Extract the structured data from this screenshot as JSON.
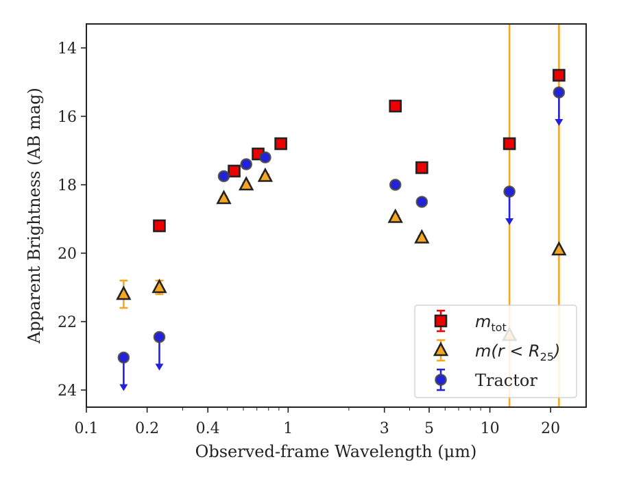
{
  "chart_data": {
    "type": "scatter",
    "title": "",
    "xlabel": "Observed-frame Wavelength (μm)",
    "ylabel": "Apparent Brightness (AB mag)",
    "xscale": "log",
    "xlim": [
      0.1,
      30
    ],
    "ylim": [
      24.5,
      13.3
    ],
    "y_inverted": true,
    "x_ticks": [
      0.1,
      0.2,
      0.4,
      1,
      3,
      5,
      10,
      20
    ],
    "x_tick_labels": [
      "0.1",
      "0.2",
      "0.4",
      "1",
      "3",
      "5",
      "10",
      "20"
    ],
    "y_ticks": [
      14,
      16,
      18,
      20,
      22,
      24
    ],
    "y_tick_labels": [
      "14",
      "16",
      "18",
      "20",
      "22",
      "24"
    ],
    "grid": false,
    "legend_position": "lower-right",
    "series": [
      {
        "name": "m_tot",
        "legend_label": {
          "main": "m",
          "sub": "tot"
        },
        "marker": "square",
        "color": "#ee0000",
        "edge_color": "#222222",
        "errorbar_color": "#ee0000",
        "points": [
          {
            "x": 0.23,
            "y": 19.2,
            "err": 0.05
          },
          {
            "x": 0.54,
            "y": 17.6,
            "err": 0.05
          },
          {
            "x": 0.71,
            "y": 17.1,
            "err": 0.05
          },
          {
            "x": 0.92,
            "y": 16.8,
            "err": 0.05
          },
          {
            "x": 3.4,
            "y": 15.7,
            "err": 0.05
          },
          {
            "x": 4.6,
            "y": 17.5,
            "err": 0.05
          },
          {
            "x": 12.5,
            "y": 16.8,
            "err": 0.05
          },
          {
            "x": 22.0,
            "y": 14.8,
            "err": 0.05
          }
        ]
      },
      {
        "name": "m(r < R_25)",
        "legend_label": {
          "main": "m(r < R",
          "sub": "25",
          "tail": ")"
        },
        "marker": "triangle",
        "color": "#f5a623",
        "edge_color": "#222222",
        "errorbar_color": "#f5a623",
        "points": [
          {
            "x": 0.153,
            "y": 21.2,
            "err": 0.4
          },
          {
            "x": 0.23,
            "y": 21.0,
            "err": 0.2
          },
          {
            "x": 0.48,
            "y": 18.4,
            "err": 0.05
          },
          {
            "x": 0.62,
            "y": 18.0,
            "err": 0.05
          },
          {
            "x": 0.77,
            "y": 17.75,
            "err": 0.05
          },
          {
            "x": 3.4,
            "y": 18.95,
            "err": 0.05
          },
          {
            "x": 4.6,
            "y": 19.55,
            "err": 0.05
          },
          {
            "x": 12.5,
            "y": 22.4,
            "err": 100
          },
          {
            "x": 22.0,
            "y": 19.9,
            "err": 100
          }
        ]
      },
      {
        "name": "Tractor",
        "legend_label": {
          "main": "Tractor"
        },
        "marker": "circle",
        "color": "#2222dd",
        "edge_color": "#444444",
        "errorbar_color": "#2222dd",
        "points": [
          {
            "x": 0.153,
            "y": 23.05,
            "err": 0.05,
            "upper_limit": true
          },
          {
            "x": 0.23,
            "y": 22.45,
            "err": 0.05,
            "upper_limit": true
          },
          {
            "x": 0.48,
            "y": 17.75,
            "err": 0.05
          },
          {
            "x": 0.62,
            "y": 17.4,
            "err": 0.05
          },
          {
            "x": 0.77,
            "y": 17.2,
            "err": 0.05
          },
          {
            "x": 3.4,
            "y": 18.0,
            "err": 0.05
          },
          {
            "x": 4.6,
            "y": 18.5,
            "err": 0.05
          },
          {
            "x": 12.5,
            "y": 18.2,
            "err": 0.05,
            "upper_limit": true
          },
          {
            "x": 22.0,
            "y": 15.3,
            "err": 0.05,
            "upper_limit": true
          }
        ]
      }
    ]
  }
}
